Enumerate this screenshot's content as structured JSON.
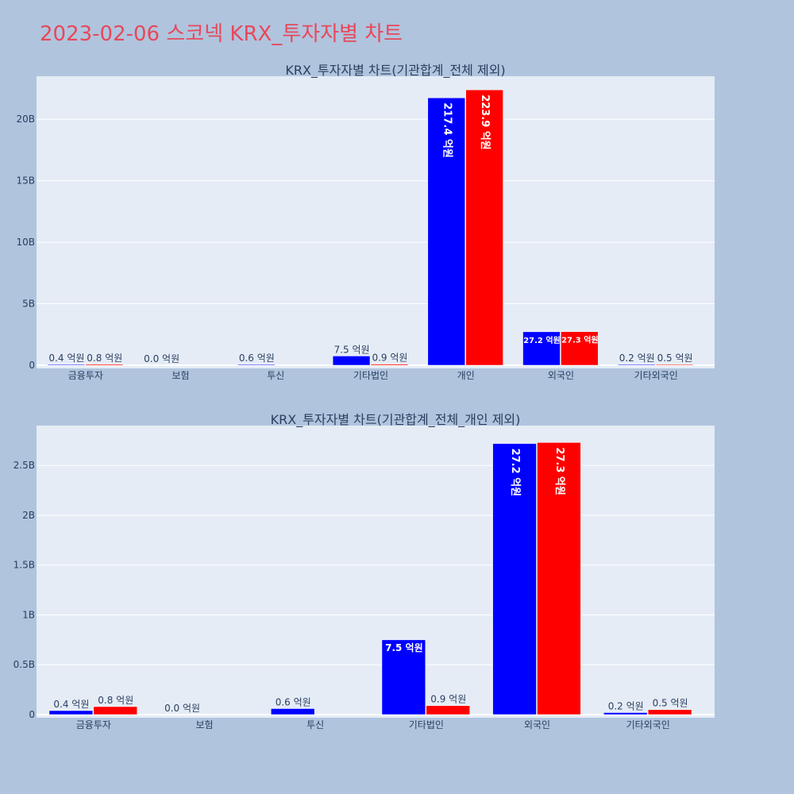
{
  "page_title": "2023-02-06 스코넥 KRX_투자자별 차트",
  "colors": {
    "background": "#b0c4de",
    "plot_bg": "#e5ecf6",
    "title": "#e8485a",
    "series_buy": "#0000ff",
    "series_sell": "#ff0000"
  },
  "chart_data": [
    {
      "type": "bar",
      "title": "KRX_투자자별 차트(기관합계_전체 제외)",
      "categories": [
        "금융투자",
        "보험",
        "투신",
        "기타법인",
        "개인",
        "외국인",
        "기타외국인"
      ],
      "ylim": [
        0,
        23500000000
      ],
      "ytick_values": [
        0,
        5000000000,
        10000000000,
        15000000000,
        20000000000
      ],
      "ytick_labels": [
        "0",
        "5B",
        "10B",
        "15B",
        "20B"
      ],
      "series": [
        {
          "color": "#0000ff",
          "values": [
            40000000,
            0,
            60000000,
            750000000,
            21740000000,
            2720000000,
            20000000
          ],
          "labels": [
            "0.4 억원",
            "0.0 억원",
            "0.6 억원",
            "7.5 억원",
            "217.4 억원",
            "27.2 억원",
            "0.2 억원"
          ]
        },
        {
          "color": "#ff0000",
          "values": [
            80000000,
            null,
            null,
            90000000,
            22390000000,
            2730000000,
            50000000
          ],
          "labels": [
            "0.8 억원",
            "",
            "",
            "0.9 억원",
            "223.9 억원",
            "27.3 억원",
            "0.5 억원"
          ]
        }
      ]
    },
    {
      "type": "bar",
      "title": "KRX_투자자별 차트(기관합계_전체_개인 제외)",
      "categories": [
        "금융투자",
        "보험",
        "투신",
        "기타법인",
        "외국인",
        "기타외국인"
      ],
      "ylim": [
        0,
        2900000000
      ],
      "ytick_values": [
        0,
        500000000,
        1000000000,
        1500000000,
        2000000000,
        2500000000
      ],
      "ytick_labels": [
        "0",
        "0.5B",
        "1B",
        "1.5B",
        "2B",
        "2.5B"
      ],
      "series": [
        {
          "color": "#0000ff",
          "values": [
            40000000,
            0,
            60000000,
            750000000,
            2720000000,
            20000000
          ],
          "labels": [
            "0.4 억원",
            "0.0 억원",
            "0.6 억원",
            "7.5 억원",
            "27.2 억원",
            "0.2 억원"
          ]
        },
        {
          "color": "#ff0000",
          "values": [
            80000000,
            null,
            null,
            90000000,
            2730000000,
            50000000
          ],
          "labels": [
            "0.8 억원",
            "",
            "",
            "0.9 억원",
            "27.3 억원",
            "0.5 억원"
          ]
        }
      ]
    }
  ]
}
